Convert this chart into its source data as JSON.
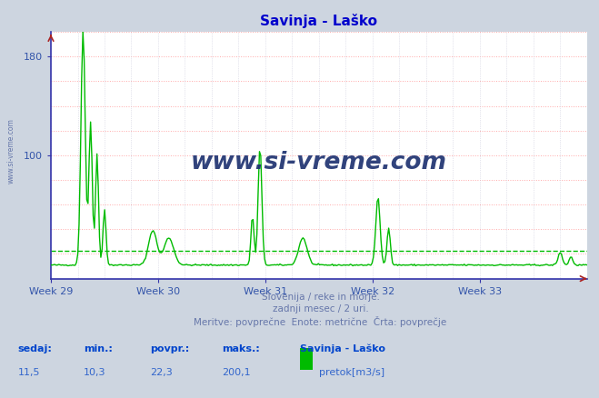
{
  "title": "Savinja - Laško",
  "title_color": "#0000cc",
  "bg_color": "#cdd5e0",
  "plot_bg_color": "#ffffff",
  "grid_h_color": "#ffaaaa",
  "grid_v_color": "#ccccdd",
  "line_color": "#00bb00",
  "line_width": 1.0,
  "axis_color": "#3333aa",
  "tick_color": "#3355aa",
  "ylim": [
    0,
    200
  ],
  "yticks": [
    100,
    180
  ],
  "xlim": [
    0,
    5
  ],
  "week_positions": [
    0,
    1,
    2,
    3,
    4
  ],
  "week_labels": [
    "Week 29",
    "Week 30",
    "Week 31",
    "Week 32",
    "Week 33"
  ],
  "footer_line1": "Slovenija / reke in morje.",
  "footer_line2": "zadnji mesec / 2 uri.",
  "footer_line3": "Meritve: povprečne  Enote: metrične  Črta: povprečje",
  "footer_color": "#6677aa",
  "stats_bold_color": "#0044cc",
  "stats_val_color": "#3366cc",
  "legend_label": "Savinja - Laško",
  "legend_series": "pretok[m3/s]",
  "legend_color": "#00bb00",
  "avg_line_value": 22.3,
  "avg_line_color": "#00bb00",
  "watermark": "www.si-vreme.com",
  "watermark_color": "#1a2e6e",
  "side_label": "www.si-vreme.com",
  "side_label_color": "#6677aa",
  "arrow_color": "#aa2222",
  "n_points": 420,
  "base_flow": 11.0
}
